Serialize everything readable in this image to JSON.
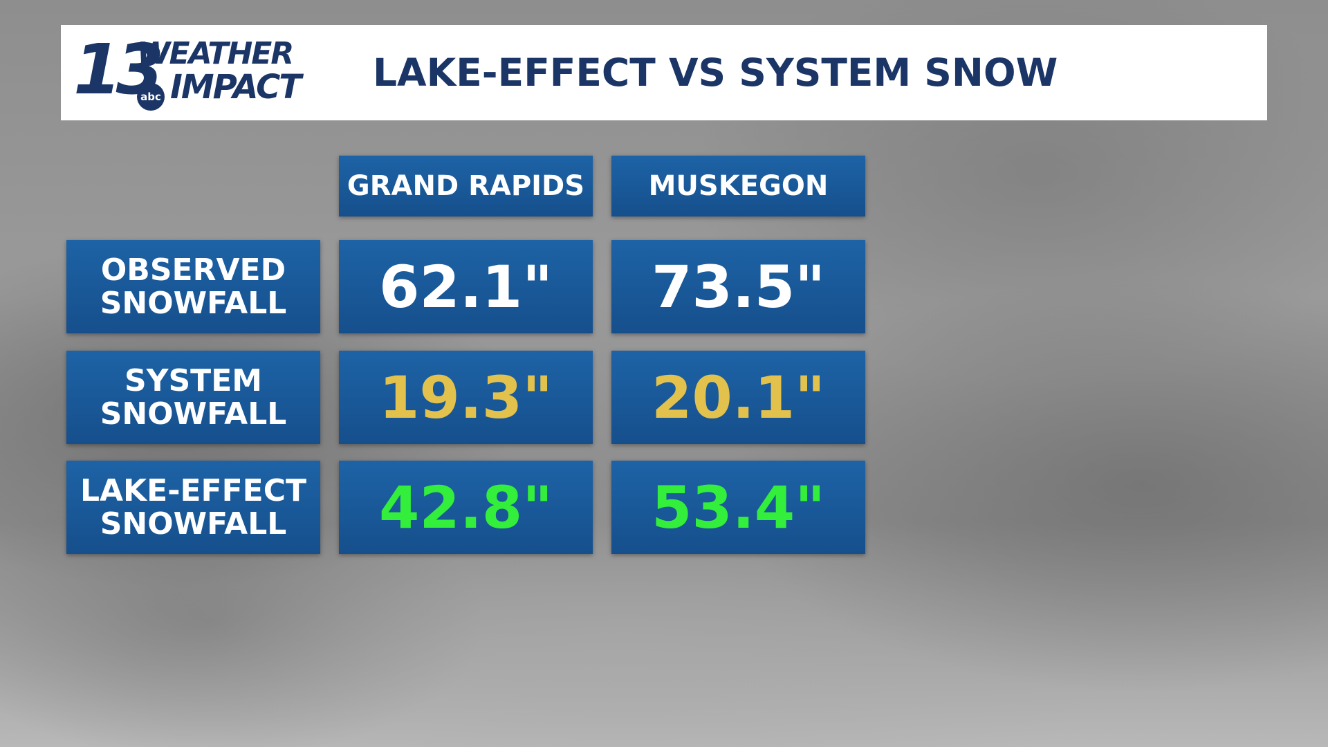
{
  "header": {
    "logo": {
      "number": "13",
      "line1": "WEATHER",
      "line2": "IMPACT",
      "network": "abc"
    },
    "title": "LAKE-EFFECT VS SYSTEM SNOW"
  },
  "table": {
    "columns": [
      "GRAND RAPIDS",
      "MUSKEGON"
    ],
    "rows": [
      {
        "label": [
          "OBSERVED",
          "SNOWFALL"
        ],
        "color": "#ffffff",
        "values": [
          "62.1\"",
          "73.5\""
        ]
      },
      {
        "label": [
          "SYSTEM",
          "SNOWFALL"
        ],
        "color": "#e2c24c",
        "values": [
          "19.3\"",
          "20.1\""
        ]
      },
      {
        "label": [
          "LAKE-EFFECT",
          "SNOWFALL"
        ],
        "color": "#33ee3a",
        "values": [
          "42.8\"",
          "53.4\""
        ]
      }
    ]
  }
}
